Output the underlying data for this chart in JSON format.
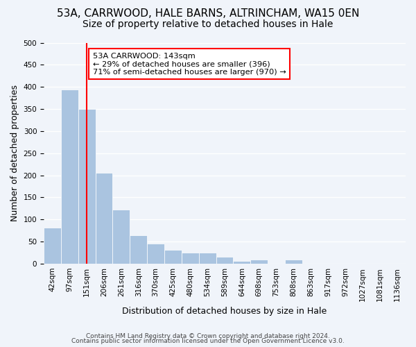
{
  "title1": "53A, CARRWOOD, HALE BARNS, ALTRINCHAM, WA15 0EN",
  "title2": "Size of property relative to detached houses in Hale",
  "xlabel": "Distribution of detached houses by size in Hale",
  "ylabel": "Number of detached properties",
  "bar_heights": [
    82,
    394,
    350,
    205,
    123,
    64,
    46,
    31,
    25,
    25,
    16,
    6,
    10,
    0,
    10,
    0,
    0,
    0,
    0,
    0,
    0
  ],
  "bin_labels": [
    "42sqm",
    "97sqm",
    "151sqm",
    "206sqm",
    "261sqm",
    "316sqm",
    "370sqm",
    "425sqm",
    "480sqm",
    "534sqm",
    "589sqm",
    "644sqm",
    "698sqm",
    "753sqm",
    "808sqm",
    "863sqm",
    "917sqm",
    "972sqm",
    "1027sqm",
    "1081sqm",
    "1136sqm"
  ],
  "bar_color": "#aac4e0",
  "redline_x": 2,
  "annotation_text": "53A CARRWOOD: 143sqm\n← 29% of detached houses are smaller (396)\n71% of semi-detached houses are larger (970) →",
  "annotation_box_color": "white",
  "annotation_box_edge": "red",
  "ylim": [
    0,
    500
  ],
  "yticks": [
    0,
    50,
    100,
    150,
    200,
    250,
    300,
    350,
    400,
    450,
    500
  ],
  "footer1": "Contains HM Land Registry data © Crown copyright and database right 2024.",
  "footer2": "Contains public sector information licensed under the Open Government Licence v3.0.",
  "background_color": "#f0f4fa",
  "grid_color": "white",
  "title1_fontsize": 11,
  "title2_fontsize": 10,
  "tick_fontsize": 7.5,
  "ylabel_fontsize": 9,
  "xlabel_fontsize": 9,
  "footer_fontsize": 6.5,
  "annot_fontsize": 8.2
}
